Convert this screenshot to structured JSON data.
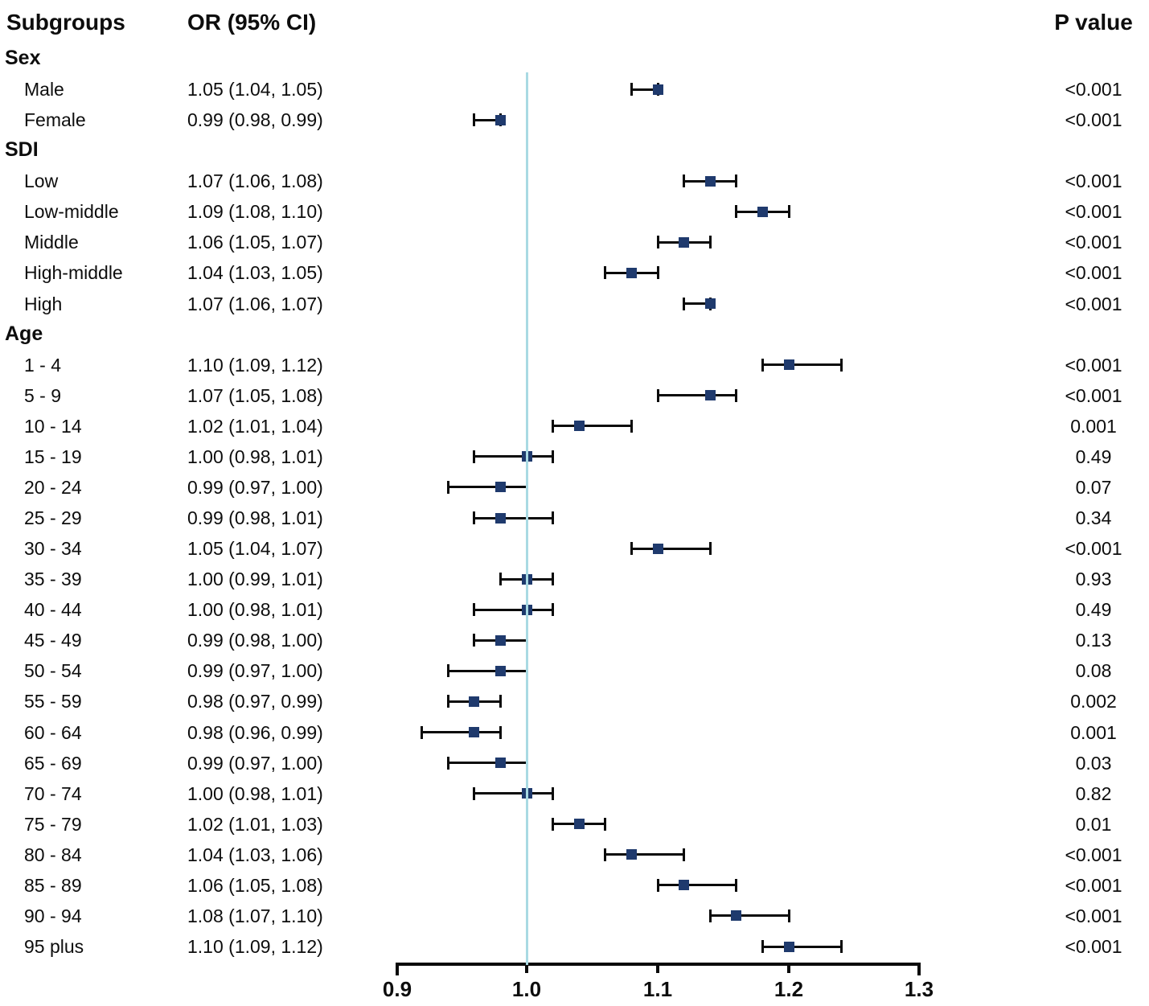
{
  "header": {
    "subgroups": "Subgroups",
    "or_ci": "OR (95% CI)",
    "p_value": "P value"
  },
  "colors": {
    "marker": "#1f3a6d",
    "ci_line": "#0a0a0a",
    "reference_line": "#a9dae3",
    "text": "#0d0d0d"
  },
  "chart_data": {
    "type": "forest",
    "xlabel": "",
    "ylabel": "",
    "x_axis": {
      "tick_labels": [
        "0.9",
        "1.0",
        "1.1",
        "1.2",
        "1.3"
      ],
      "tick_values": [
        0.9,
        1.0,
        1.1,
        1.2,
        1.3
      ],
      "range": [
        0.9,
        1.3
      ],
      "reference_line_at": 1.0
    },
    "rows": [
      {
        "kind": "group",
        "label": "Sex"
      },
      {
        "kind": "item",
        "label": "Male",
        "or_text": "1.05 (1.04, 1.05)",
        "or": 1.05,
        "ci_low": 1.04,
        "ci_high": 1.05,
        "p": "<0.001",
        "plot": {
          "mid": 1.1,
          "lo": 1.08,
          "hi": 1.1
        }
      },
      {
        "kind": "item",
        "label": "Female",
        "or_text": "0.99 (0.98, 0.99)",
        "or": 0.99,
        "ci_low": 0.98,
        "ci_high": 0.99,
        "p": "<0.001",
        "plot": {
          "mid": 0.98,
          "lo": 0.96,
          "hi": 0.98
        }
      },
      {
        "kind": "group",
        "label": "SDI"
      },
      {
        "kind": "item",
        "label": "Low",
        "or_text": "1.07 (1.06, 1.08)",
        "or": 1.07,
        "ci_low": 1.06,
        "ci_high": 1.08,
        "p": "<0.001",
        "plot": {
          "mid": 1.14,
          "lo": 1.12,
          "hi": 1.16
        }
      },
      {
        "kind": "item",
        "label": "Low-middle",
        "or_text": "1.09 (1.08, 1.10)",
        "or": 1.09,
        "ci_low": 1.08,
        "ci_high": 1.1,
        "p": "<0.001",
        "plot": {
          "mid": 1.18,
          "lo": 1.16,
          "hi": 1.2
        }
      },
      {
        "kind": "item",
        "label": "Middle",
        "or_text": "1.06 (1.05, 1.07)",
        "or": 1.06,
        "ci_low": 1.05,
        "ci_high": 1.07,
        "p": "<0.001",
        "plot": {
          "mid": 1.12,
          "lo": 1.1,
          "hi": 1.14
        }
      },
      {
        "kind": "item",
        "label": "High-middle",
        "or_text": "1.04 (1.03, 1.05)",
        "or": 1.04,
        "ci_low": 1.03,
        "ci_high": 1.05,
        "p": "<0.001",
        "plot": {
          "mid": 1.08,
          "lo": 1.06,
          "hi": 1.1
        }
      },
      {
        "kind": "item",
        "label": "High",
        "or_text": "1.07 (1.06, 1.07)",
        "or": 1.07,
        "ci_low": 1.06,
        "ci_high": 1.07,
        "p": "<0.001",
        "plot": {
          "mid": 1.14,
          "lo": 1.12,
          "hi": 1.14
        }
      },
      {
        "kind": "group",
        "label": "Age"
      },
      {
        "kind": "item",
        "label": "1 - 4",
        "or_text": "1.10 (1.09, 1.12)",
        "or": 1.1,
        "ci_low": 1.09,
        "ci_high": 1.12,
        "p": "<0.001",
        "plot": {
          "mid": 1.2,
          "lo": 1.18,
          "hi": 1.24
        }
      },
      {
        "kind": "item",
        "label": "5 - 9",
        "or_text": "1.07 (1.05, 1.08)",
        "or": 1.07,
        "ci_low": 1.05,
        "ci_high": 1.08,
        "p": "<0.001",
        "plot": {
          "mid": 1.14,
          "lo": 1.1,
          "hi": 1.16
        }
      },
      {
        "kind": "item",
        "label": "10 - 14",
        "or_text": "1.02 (1.01, 1.04)",
        "or": 1.02,
        "ci_low": 1.01,
        "ci_high": 1.04,
        "p": "0.001",
        "plot": {
          "mid": 1.04,
          "lo": 1.02,
          "hi": 1.08
        }
      },
      {
        "kind": "item",
        "label": "15 - 19",
        "or_text": "1.00 (0.98, 1.01)",
        "or": 1.0,
        "ci_low": 0.98,
        "ci_high": 1.01,
        "p": "0.49",
        "plot": {
          "mid": 1.0,
          "lo": 0.96,
          "hi": 1.02
        }
      },
      {
        "kind": "item",
        "label": "20 - 24",
        "or_text": "0.99 (0.97, 1.00)",
        "or": 0.99,
        "ci_low": 0.97,
        "ci_high": 1.0,
        "p": "0.07",
        "plot": {
          "mid": 0.98,
          "lo": 0.94,
          "hi": 1.0
        }
      },
      {
        "kind": "item",
        "label": "25 - 29",
        "or_text": "0.99 (0.98, 1.01)",
        "or": 0.99,
        "ci_low": 0.98,
        "ci_high": 1.01,
        "p": "0.34",
        "plot": {
          "mid": 0.98,
          "lo": 0.96,
          "hi": 1.02
        }
      },
      {
        "kind": "item",
        "label": "30 - 34",
        "or_text": "1.05 (1.04, 1.07)",
        "or": 1.05,
        "ci_low": 1.04,
        "ci_high": 1.07,
        "p": "<0.001",
        "plot": {
          "mid": 1.1,
          "lo": 1.08,
          "hi": 1.14
        }
      },
      {
        "kind": "item",
        "label": "35 - 39",
        "or_text": "1.00 (0.99, 1.01)",
        "or": 1.0,
        "ci_low": 0.99,
        "ci_high": 1.01,
        "p": "0.93",
        "plot": {
          "mid": 1.0,
          "lo": 0.98,
          "hi": 1.02
        }
      },
      {
        "kind": "item",
        "label": "40 - 44",
        "or_text": "1.00 (0.98, 1.01)",
        "or": 1.0,
        "ci_low": 0.98,
        "ci_high": 1.01,
        "p": "0.49",
        "plot": {
          "mid": 1.0,
          "lo": 0.96,
          "hi": 1.02
        }
      },
      {
        "kind": "item",
        "label": "45 - 49",
        "or_text": "0.99 (0.98, 1.00)",
        "or": 0.99,
        "ci_low": 0.98,
        "ci_high": 1.0,
        "p": "0.13",
        "plot": {
          "mid": 0.98,
          "lo": 0.96,
          "hi": 1.0
        }
      },
      {
        "kind": "item",
        "label": "50 - 54",
        "or_text": "0.99 (0.97, 1.00)",
        "or": 0.99,
        "ci_low": 0.97,
        "ci_high": 1.0,
        "p": "0.08",
        "plot": {
          "mid": 0.98,
          "lo": 0.94,
          "hi": 1.0
        }
      },
      {
        "kind": "item",
        "label": "55 - 59",
        "or_text": "0.98 (0.97, 0.99)",
        "or": 0.98,
        "ci_low": 0.97,
        "ci_high": 0.99,
        "p": "0.002",
        "plot": {
          "mid": 0.96,
          "lo": 0.94,
          "hi": 0.98
        }
      },
      {
        "kind": "item",
        "label": "60 - 64",
        "or_text": "0.98 (0.96, 0.99)",
        "or": 0.98,
        "ci_low": 0.96,
        "ci_high": 0.99,
        "p": "0.001",
        "plot": {
          "mid": 0.96,
          "lo": 0.92,
          "hi": 0.98
        }
      },
      {
        "kind": "item",
        "label": "65 - 69",
        "or_text": "0.99 (0.97, 1.00)",
        "or": 0.99,
        "ci_low": 0.97,
        "ci_high": 1.0,
        "p": "0.03",
        "plot": {
          "mid": 0.98,
          "lo": 0.94,
          "hi": 1.0
        }
      },
      {
        "kind": "item",
        "label": "70 - 74",
        "or_text": "1.00 (0.98, 1.01)",
        "or": 1.0,
        "ci_low": 0.98,
        "ci_high": 1.01,
        "p": "0.82",
        "plot": {
          "mid": 1.0,
          "lo": 0.96,
          "hi": 1.02
        }
      },
      {
        "kind": "item",
        "label": "75 - 79",
        "or_text": "1.02 (1.01, 1.03)",
        "or": 1.02,
        "ci_low": 1.01,
        "ci_high": 1.03,
        "p": "0.01",
        "plot": {
          "mid": 1.04,
          "lo": 1.02,
          "hi": 1.06
        }
      },
      {
        "kind": "item",
        "label": "80 - 84",
        "or_text": "1.04 (1.03, 1.06)",
        "or": 1.04,
        "ci_low": 1.03,
        "ci_high": 1.06,
        "p": "<0.001",
        "plot": {
          "mid": 1.08,
          "lo": 1.06,
          "hi": 1.12
        }
      },
      {
        "kind": "item",
        "label": "85 - 89",
        "or_text": "1.06 (1.05, 1.08)",
        "or": 1.06,
        "ci_low": 1.05,
        "ci_high": 1.08,
        "p": "<0.001",
        "plot": {
          "mid": 1.12,
          "lo": 1.1,
          "hi": 1.16
        }
      },
      {
        "kind": "item",
        "label": "90 - 94",
        "or_text": "1.08 (1.07, 1.10)",
        "or": 1.08,
        "ci_low": 1.07,
        "ci_high": 1.1,
        "p": "<0.001",
        "plot": {
          "mid": 1.16,
          "lo": 1.14,
          "hi": 1.2
        }
      },
      {
        "kind": "item",
        "label": "95 plus",
        "or_text": "1.10 (1.09, 1.12)",
        "or": 1.1,
        "ci_low": 1.09,
        "ci_high": 1.12,
        "p": "<0.001",
        "plot": {
          "mid": 1.2,
          "lo": 1.18,
          "hi": 1.24
        }
      }
    ]
  }
}
